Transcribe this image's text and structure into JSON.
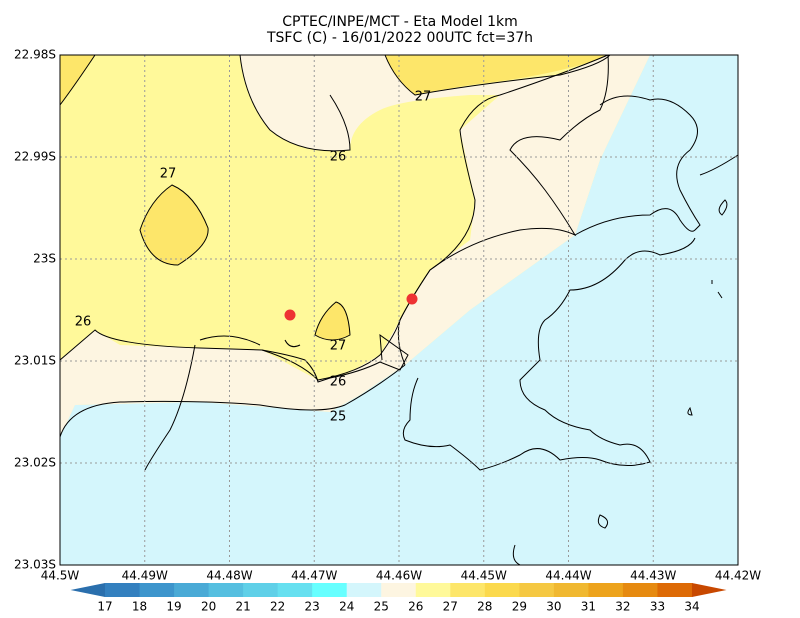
{
  "header": {
    "title_line1": "CPTEC/INPE/MCT -  Eta Model 1km",
    "title_line2": "TSFC (C) - 16/01/2022 00UTC fct=37h"
  },
  "map": {
    "y_labels": [
      "22.98S",
      "22.99S",
      "23S",
      "23.01S",
      "23.02S",
      "23.03S"
    ],
    "x_labels": [
      "44.5W",
      "44.49W",
      "44.48W",
      "44.47W",
      "44.46W",
      "44.45W",
      "44.44W",
      "44.43W",
      "44.42W"
    ],
    "contour_labels": [
      27,
      26,
      27,
      26,
      27,
      26,
      25
    ]
  },
  "colorbar": {
    "labels": [
      17,
      18,
      19,
      20,
      21,
      22,
      23,
      24,
      25,
      26,
      27,
      28,
      29,
      30,
      31,
      32,
      33,
      34
    ],
    "colors": [
      "#2a6fad",
      "#3380bf",
      "#3d95cc",
      "#4aaad6",
      "#55bfe0",
      "#5fd0e8",
      "#66e0f0",
      "#66ffff",
      "#d4f6fc",
      "#fdf5e1",
      "#fff99a",
      "#fde66a",
      "#fbd94d",
      "#f5c842",
      "#f0b830",
      "#eda31c",
      "#e68a10",
      "#dd6a05",
      "#c84800"
    ]
  }
}
